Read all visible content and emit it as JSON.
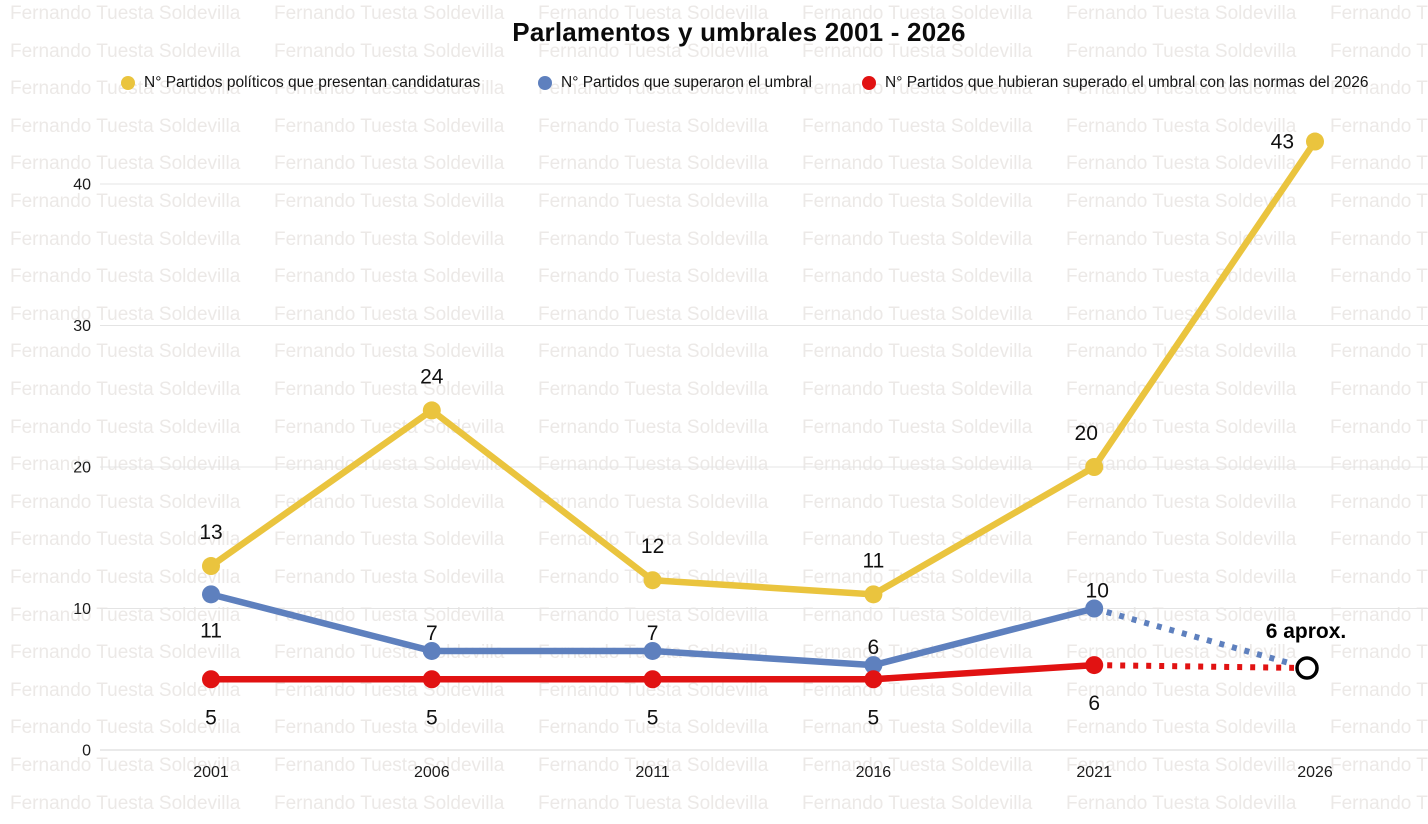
{
  "title": "Parlamentos y umbrales 2001 - 2026",
  "watermark_text": "Fernando Tuesta Soldevilla",
  "colors": {
    "yellow": "#EAC43E",
    "blue": "#5E80BE",
    "red": "#E11212",
    "grid": "#e4e4e4",
    "watermark": "#ece9e7"
  },
  "legend": {
    "items": [
      {
        "label": "N° Partidos políticos que presentan candidaturas",
        "color": "#EAC43E"
      },
      {
        "label": "N° Partidos que superaron el umbral",
        "color": "#5E80BE"
      },
      {
        "label": "N° Partidos que hubieran superado el umbral con las normas del 2026",
        "color": "#E11212"
      }
    ]
  },
  "chart_data": {
    "type": "line",
    "title": "Parlamentos y umbrales 2001 - 2026",
    "categories": [
      "2001",
      "2006",
      "2011",
      "2016",
      "2021",
      "2026"
    ],
    "y_ticks": [
      0,
      10,
      20,
      30,
      40
    ],
    "ylim": [
      0,
      46
    ],
    "grid": "horizontal",
    "legend_position": "top",
    "series": [
      {
        "name": "N° Partidos políticos que presentan candidaturas",
        "color": "#EAC43E",
        "style": "solid",
        "values": [
          13,
          24,
          12,
          11,
          20,
          43
        ],
        "labels": [
          {
            "text": "13",
            "placement": "above"
          },
          {
            "text": "24",
            "placement": "above"
          },
          {
            "text": "12",
            "placement": "above"
          },
          {
            "text": "11",
            "placement": "above"
          },
          {
            "text": "20",
            "placement": "above"
          },
          {
            "text": "43",
            "placement": "left"
          }
        ]
      },
      {
        "name": "N° Partidos que superaron el umbral",
        "color": "#5E80BE",
        "style": "solid",
        "values": [
          11,
          7,
          7,
          6,
          10,
          null
        ],
        "labels": [
          {
            "text": "11",
            "placement": "below"
          },
          {
            "text": "7",
            "placement": "above"
          },
          {
            "text": "7",
            "placement": "above"
          },
          {
            "text": "6",
            "placement": "above"
          },
          {
            "text": "10",
            "placement": "above"
          }
        ]
      },
      {
        "name": "N° Partidos que hubieran superado el umbral con las normas del 2026",
        "color": "#E11212",
        "style": "solid",
        "values": [
          5,
          5,
          5,
          5,
          6,
          null
        ],
        "labels": [
          {
            "text": "5",
            "placement": "below"
          },
          {
            "text": "5",
            "placement": "below"
          },
          {
            "text": "5",
            "placement": "below"
          },
          {
            "text": "5",
            "placement": "below"
          },
          {
            "text": "6",
            "placement": "below"
          }
        ]
      }
    ],
    "projection": {
      "endpoint_category": "2026",
      "endpoint_value": 6,
      "endpoint_label": "6 aprox.",
      "endpoint_marker": "open-circle",
      "lines": [
        {
          "series": "N° Partidos que superaron el umbral",
          "from_category": "2021",
          "from_value": 10,
          "style": "dotted",
          "color": "#5E80BE"
        },
        {
          "series": "N° Partidos que hubieran superado el umbral con las normas del 2026",
          "from_category": "2021",
          "from_value": 6,
          "style": "dotted",
          "color": "#E11212"
        }
      ]
    }
  }
}
